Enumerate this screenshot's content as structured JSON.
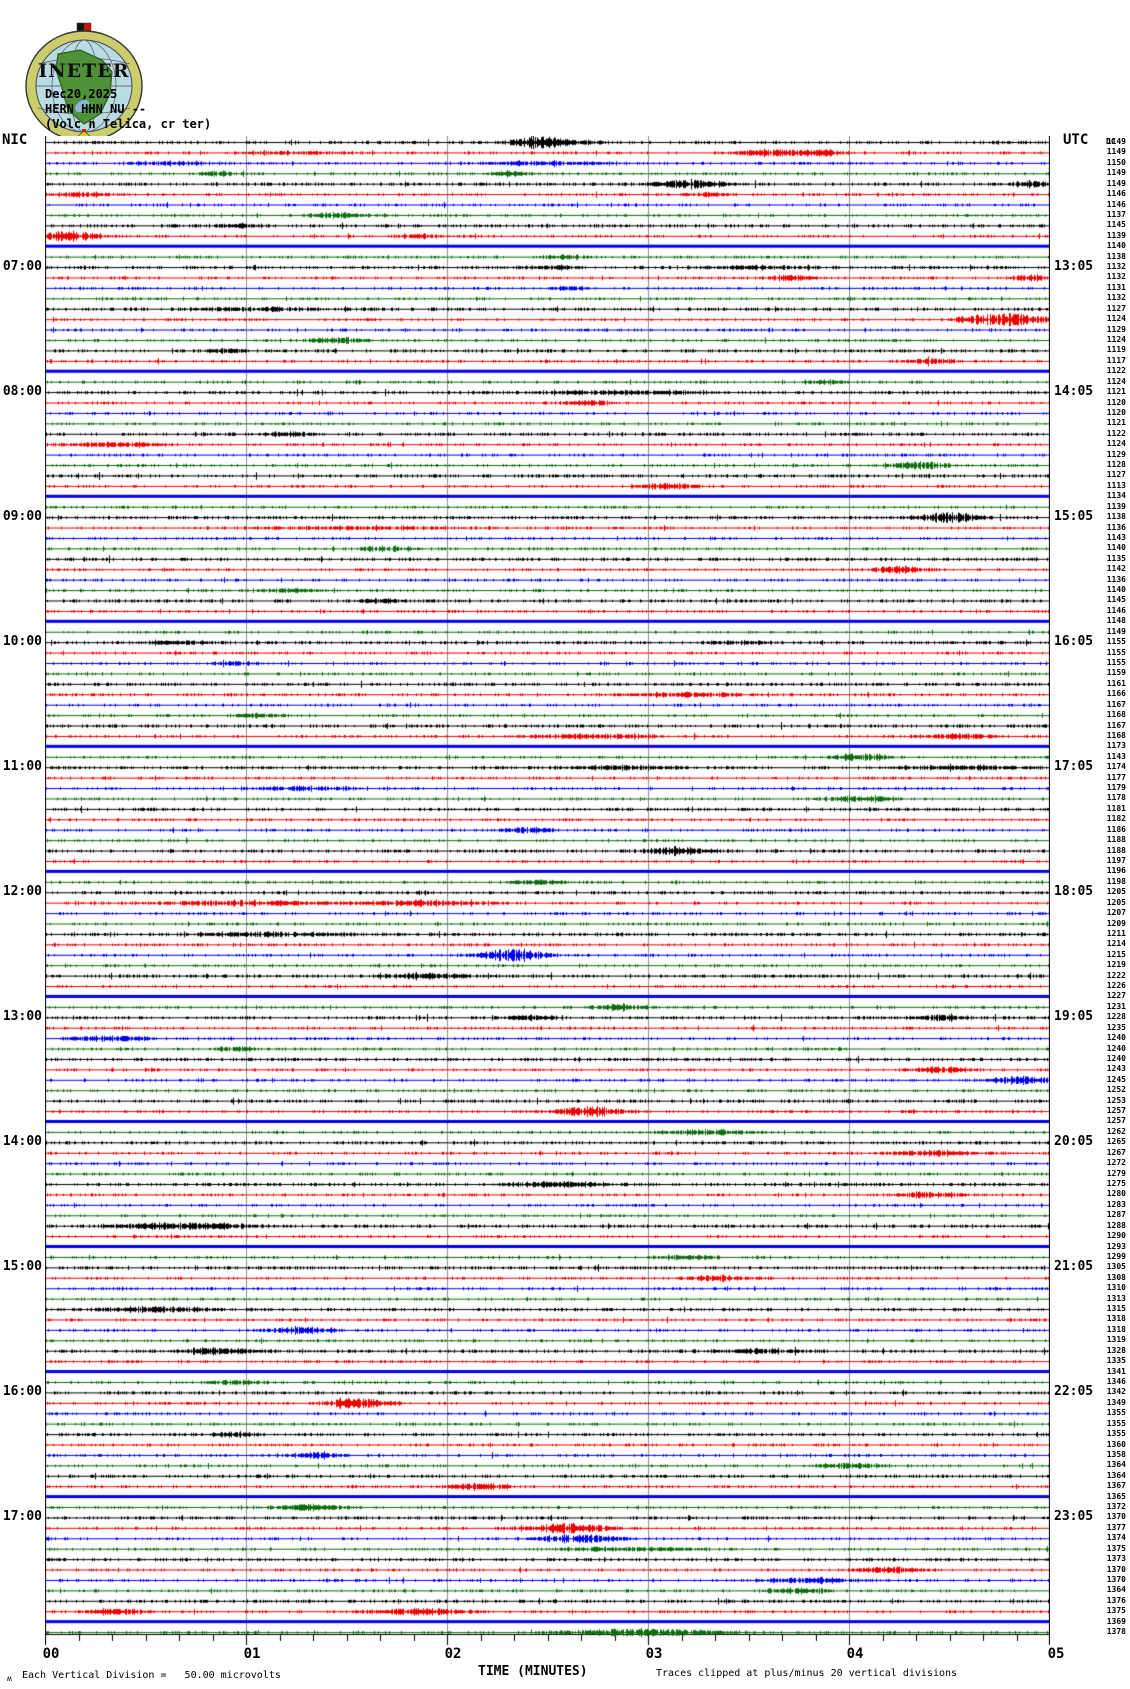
{
  "header": {
    "logo_text": "INETER",
    "date": "Dec20,2025",
    "station": "HERN HHN NU --",
    "location": "(Volc n Telica, cr ter)"
  },
  "axes": {
    "left_zone": "NIC",
    "right_zone": "UTC",
    "right_dc_header": "DC",
    "x_tick_labels": [
      "00",
      "01",
      "02",
      "03",
      "04",
      "05"
    ],
    "xlabel": "TIME (MINUTES)",
    "clip_note": "Traces clipped at plus/minus 20 vertical divisions",
    "scale_note": "Each Vertical Division =   50.00 microvolts",
    "watermark": "ʍ"
  },
  "chart_data": {
    "type": "helicorder-line",
    "title": "HERN HHN NU -- (Volc n Telica, cr ter) Dec20,2025",
    "xlabel": "TIME (MINUTES)",
    "x_range_minutes": [
      0,
      5
    ],
    "minor_ticks_per_minute": 6,
    "minutes_per_row": 5,
    "rows": 144,
    "start_time_left": "06:00",
    "left_timezone": "NIC",
    "right_timezone": "UTC",
    "utc_offset_hours": 6,
    "scale_microvolts_per_division": 50.0,
    "clip_divisions": 20,
    "trace_color_cycle": [
      "black",
      "red",
      "blue",
      "green"
    ],
    "colors": {
      "black": "#000000",
      "red": "#ee0000",
      "blue": "#0000ee",
      "green": "#0b6e0b",
      "grid": "#909090"
    },
    "flat_blue_row_phase": 10,
    "left_hour_labels": [
      {
        "row": 12,
        "label": "07:00"
      },
      {
        "row": 24,
        "label": "08:00"
      },
      {
        "row": 36,
        "label": "09:00"
      },
      {
        "row": 48,
        "label": "10:00"
      },
      {
        "row": 60,
        "label": "11:00"
      },
      {
        "row": 72,
        "label": "12:00"
      },
      {
        "row": 84,
        "label": "13:00"
      },
      {
        "row": 96,
        "label": "14:00"
      },
      {
        "row": 108,
        "label": "15:00"
      },
      {
        "row": 120,
        "label": "16:00"
      },
      {
        "row": 132,
        "label": "17:00"
      }
    ],
    "right_hour_labels": [
      {
        "row": 12,
        "label": "13:05"
      },
      {
        "row": 24,
        "label": "14:05"
      },
      {
        "row": 36,
        "label": "15:05"
      },
      {
        "row": 48,
        "label": "16:05"
      },
      {
        "row": 60,
        "label": "17:05"
      },
      {
        "row": 72,
        "label": "18:05"
      },
      {
        "row": 84,
        "label": "19:05"
      },
      {
        "row": 96,
        "label": "20:05"
      },
      {
        "row": 108,
        "label": "21:05"
      },
      {
        "row": 120,
        "label": "22:05"
      },
      {
        "row": 132,
        "label": "23:05"
      }
    ],
    "dc_values": [
      1149,
      1149,
      1150,
      1149,
      1149,
      1146,
      1146,
      1137,
      1145,
      1139,
      1140,
      1138,
      1132,
      1132,
      1131,
      1132,
      1127,
      1124,
      1129,
      1124,
      1119,
      1117,
      1122,
      1124,
      1121,
      1120,
      1120,
      1121,
      1122,
      1124,
      1129,
      1128,
      1127,
      1113,
      1134,
      1139,
      1138,
      1136,
      1143,
      1140,
      1135,
      1142,
      1136,
      1140,
      1145,
      1146,
      1148,
      1149,
      1155,
      1155,
      1155,
      1159,
      1161,
      1166,
      1167,
      1168,
      1167,
      1168,
      1173,
      1143,
      1174,
      1177,
      1179,
      1178,
      1181,
      1182,
      1186,
      1188,
      1188,
      1197,
      1196,
      1198,
      1205,
      1205,
      1207,
      1209,
      1211,
      1214,
      1215,
      1219,
      1222,
      1226,
      1227,
      1231,
      1228,
      1235,
      1240,
      1240,
      1240,
      1243,
      1245,
      1252,
      1253,
      1257,
      1257,
      1262,
      1265,
      1267,
      1272,
      1279,
      1275,
      1280,
      1283,
      1287,
      1288,
      1290,
      1293,
      1299,
      1305,
      1308,
      1310,
      1313,
      1315,
      1318,
      1318,
      1319,
      1328,
      1335,
      1341,
      1346,
      1342,
      1349,
      1355,
      1355,
      1355,
      1360,
      1358,
      1364,
      1364,
      1367,
      1365,
      1372,
      1370,
      1377,
      1374,
      1375,
      1373,
      1370,
      1370,
      1364,
      1376,
      1375,
      1369,
      1378
    ],
    "events": [
      [
        0,
        2.45,
        0.09,
        7
      ],
      [
        0,
        2.62,
        0.12,
        2
      ],
      [
        1,
        3.6,
        0.15,
        3
      ],
      [
        1,
        3.85,
        0.1,
        3
      ],
      [
        1,
        1.2,
        0.25,
        1.5
      ],
      [
        2,
        0.6,
        0.2,
        1.5
      ],
      [
        2,
        2.5,
        0.3,
        1.5
      ],
      [
        3,
        0.85,
        0.08,
        2.5
      ],
      [
        3,
        2.3,
        0.08,
        2
      ],
      [
        4,
        3.2,
        0.15,
        4
      ],
      [
        4,
        4.9,
        0.08,
        3
      ],
      [
        5,
        0.2,
        0.15,
        2
      ],
      [
        5,
        3.3,
        0.1,
        2
      ],
      [
        7,
        1.45,
        0.12,
        2.5
      ],
      [
        8,
        0.95,
        0.1,
        2
      ],
      [
        9,
        0.12,
        0.12,
        5
      ],
      [
        9,
        1.85,
        0.12,
        2
      ],
      [
        11,
        2.6,
        0.1,
        2
      ],
      [
        12,
        2.55,
        0.1,
        2
      ],
      [
        12,
        3.5,
        0.25,
        1.5
      ],
      [
        13,
        3.7,
        0.1,
        3
      ],
      [
        13,
        4.9,
        0.08,
        3
      ],
      [
        14,
        2.6,
        0.08,
        2
      ],
      [
        16,
        1.1,
        0.3,
        1.5
      ],
      [
        17,
        4.78,
        0.18,
        6
      ],
      [
        19,
        1.45,
        0.12,
        3
      ],
      [
        20,
        0.9,
        0.08,
        2
      ],
      [
        21,
        4.4,
        0.12,
        2.5
      ],
      [
        23,
        3.9,
        0.1,
        2
      ],
      [
        24,
        2.9,
        0.4,
        1.8
      ],
      [
        25,
        2.7,
        0.1,
        2.5
      ],
      [
        28,
        1.2,
        0.1,
        2
      ],
      [
        29,
        0.35,
        0.2,
        2.5
      ],
      [
        31,
        4.35,
        0.12,
        4
      ],
      [
        33,
        3.1,
        0.12,
        3
      ],
      [
        34,
        3.05,
        0.08,
        2
      ],
      [
        36,
        4.5,
        0.12,
        5
      ],
      [
        37,
        1.5,
        0.4,
        1.5
      ],
      [
        39,
        1.7,
        0.12,
        3
      ],
      [
        41,
        4.25,
        0.12,
        3
      ],
      [
        43,
        1.2,
        0.15,
        2
      ],
      [
        44,
        1.65,
        0.1,
        2
      ],
      [
        46,
        2.1,
        0.12,
        2.5
      ],
      [
        48,
        0.65,
        0.15,
        2
      ],
      [
        48,
        3.45,
        0.12,
        2
      ],
      [
        50,
        0.95,
        0.1,
        2
      ],
      [
        53,
        3.2,
        0.3,
        2
      ],
      [
        55,
        1.05,
        0.1,
        2
      ],
      [
        57,
        2.7,
        0.3,
        2
      ],
      [
        57,
        4.55,
        0.15,
        2.5
      ],
      [
        59,
        4.05,
        0.12,
        3
      ],
      [
        60,
        2.9,
        0.25,
        2
      ],
      [
        60,
        4.55,
        0.3,
        1.8
      ],
      [
        62,
        1.3,
        0.2,
        2
      ],
      [
        63,
        4.05,
        0.15,
        3
      ],
      [
        66,
        2.4,
        0.09,
        3
      ],
      [
        68,
        3.15,
        0.12,
        4
      ],
      [
        70,
        4.25,
        0.15,
        2
      ],
      [
        71,
        2.45,
        0.12,
        2
      ],
      [
        73,
        0.95,
        0.35,
        2.5
      ],
      [
        73,
        1.9,
        0.3,
        2.5
      ],
      [
        76,
        1.1,
        0.3,
        2
      ],
      [
        78,
        2.33,
        0.14,
        6
      ],
      [
        80,
        1.9,
        0.2,
        2
      ],
      [
        83,
        2.85,
        0.12,
        3
      ],
      [
        84,
        2.4,
        0.12,
        2
      ],
      [
        84,
        4.45,
        0.12,
        2.5
      ],
      [
        86,
        0.3,
        0.15,
        3
      ],
      [
        87,
        0.95,
        0.1,
        2
      ],
      [
        89,
        4.45,
        0.12,
        3
      ],
      [
        90,
        4.85,
        0.12,
        3.5
      ],
      [
        93,
        2.7,
        0.14,
        5
      ],
      [
        95,
        3.3,
        0.2,
        2.5
      ],
      [
        97,
        4.4,
        0.2,
        2.5
      ],
      [
        100,
        2.55,
        0.2,
        2.5
      ],
      [
        101,
        4.4,
        0.12,
        3
      ],
      [
        104,
        0.7,
        0.3,
        3
      ],
      [
        107,
        3.2,
        0.15,
        2
      ],
      [
        109,
        3.35,
        0.15,
        2.5
      ],
      [
        112,
        0.55,
        0.25,
        2.5
      ],
      [
        114,
        1.25,
        0.15,
        3
      ],
      [
        116,
        0.85,
        0.15,
        3
      ],
      [
        116,
        3.55,
        0.2,
        2
      ],
      [
        119,
        0.95,
        0.12,
        2
      ],
      [
        121,
        1.55,
        0.14,
        5
      ],
      [
        124,
        0.95,
        0.1,
        2
      ],
      [
        126,
        1.35,
        0.12,
        2.5
      ],
      [
        127,
        4.0,
        0.15,
        2.5
      ],
      [
        129,
        2.15,
        0.12,
        3
      ],
      [
        131,
        1.3,
        0.15,
        3
      ],
      [
        133,
        2.6,
        0.16,
        5
      ],
      [
        134,
        2.65,
        0.16,
        4
      ],
      [
        135,
        2.9,
        0.3,
        2
      ],
      [
        137,
        4.2,
        0.15,
        3
      ],
      [
        138,
        3.8,
        0.2,
        2.5
      ],
      [
        139,
        3.75,
        0.12,
        3
      ],
      [
        141,
        0.35,
        0.12,
        3
      ],
      [
        141,
        1.85,
        0.2,
        3.5
      ],
      [
        143,
        2.95,
        0.35,
        3.5
      ]
    ]
  }
}
